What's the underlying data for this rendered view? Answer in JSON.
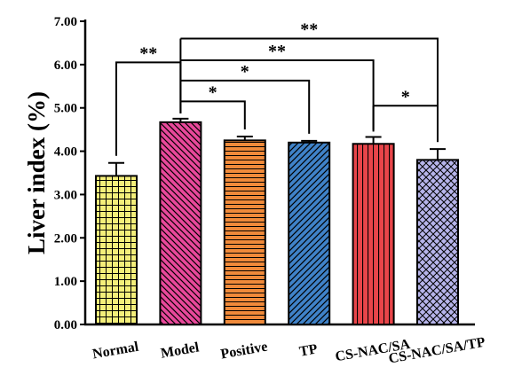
{
  "chart_data": {
    "type": "bar",
    "ylabel": "Liver index (%)",
    "xlabel": "",
    "ylim": [
      0,
      7
    ],
    "yticks": [
      "0.00",
      "1.00",
      "2.00",
      "3.00",
      "4.00",
      "5.00",
      "6.00",
      "7.00"
    ],
    "categories": [
      "Normal",
      "Model",
      "Positive",
      "TP",
      "CS-NAC/SA",
      "CS-NAC/SA/TP"
    ],
    "values": [
      3.43,
      4.67,
      4.25,
      4.2,
      4.17,
      3.8
    ],
    "errors": [
      0.3,
      0.08,
      0.09,
      0.04,
      0.16,
      0.25
    ],
    "colors": [
      "#f4ef7a",
      "#e8489a",
      "#f08a3a",
      "#3f82c8",
      "#e8454a",
      "#b6b4ea"
    ],
    "patterns": [
      "grid",
      "diag-down",
      "horizontal",
      "diag-up",
      "vertical",
      "crosshatch"
    ],
    "significance": [
      {
        "from": "Model",
        "to": "Normal",
        "label": "**"
      },
      {
        "from": "Model",
        "to": "Positive",
        "label": "*"
      },
      {
        "from": "Model",
        "to": "TP",
        "label": "*"
      },
      {
        "from": "Model",
        "to": "CS-NAC/SA",
        "label": "**"
      },
      {
        "from": "Model",
        "to": "CS-NAC/SA/TP",
        "label": "**"
      },
      {
        "from": "CS-NAC/SA",
        "to": "CS-NAC/SA/TP",
        "label": "*"
      }
    ]
  }
}
